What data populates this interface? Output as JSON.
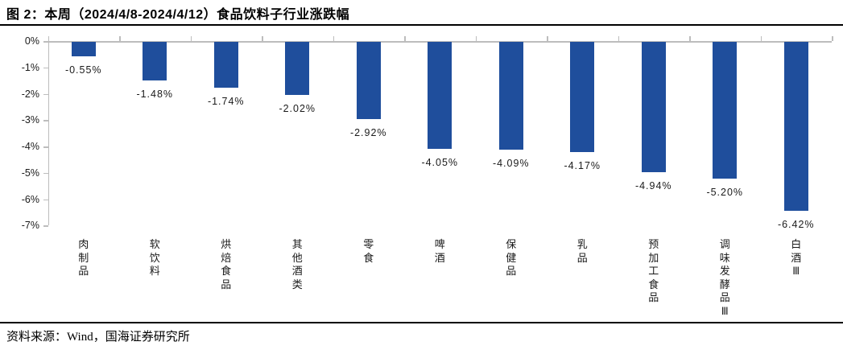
{
  "figure": {
    "title": "图 2：本周（2024/4/8-2024/4/12）食品饮料子行业涨跌幅",
    "source": "资料来源：Wind，国海证券研究所"
  },
  "colors": {
    "bar": "#1F4E9C",
    "axis": "#BDBDBD",
    "rule": "#000000",
    "text": "#000000"
  },
  "chart_data": {
    "type": "bar",
    "title": "本周（2024/4/8-2024/4/12）食品饮料子行业涨跌幅",
    "categories": [
      "肉制品",
      "软饮料",
      "烘焙食品",
      "其他酒类",
      "零食",
      "啤酒",
      "保健品",
      "乳品",
      "预加工食品",
      "调味发酵品Ⅲ",
      "白酒Ⅲ"
    ],
    "values": [
      -0.55,
      -1.48,
      -1.74,
      -2.02,
      -2.92,
      -4.05,
      -4.09,
      -4.17,
      -4.94,
      -5.2,
      -6.42
    ],
    "value_labels": [
      "-0.55%",
      "-1.48%",
      "-1.74%",
      "-2.02%",
      "-2.92%",
      "-4.05%",
      "-4.09%",
      "-4.17%",
      "-4.94%",
      "-5.20%",
      "-6.42%"
    ],
    "xlabel": "",
    "ylabel": "",
    "ylim": [
      -7,
      0
    ],
    "ytick_labels": [
      "0%",
      "-1%",
      "-2%",
      "-3%",
      "-4%",
      "-5%",
      "-6%",
      "-7%"
    ],
    "grid": false,
    "legend_position": "none",
    "bar_color": "#1F4E9C"
  }
}
